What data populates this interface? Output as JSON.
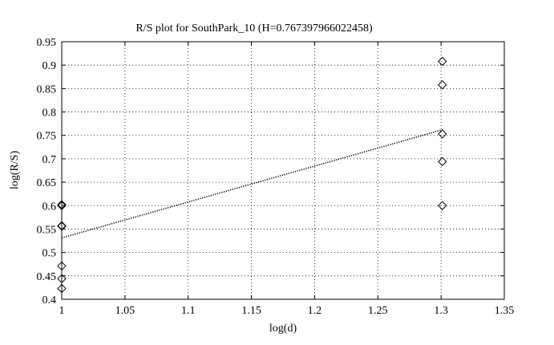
{
  "chart_data": {
    "type": "scatter",
    "title": "R/S plot for SouthPark_10 (H=0.767397966022458)",
    "xlabel": "log(d)",
    "ylabel": "log(R/S)",
    "xlim": [
      1,
      1.35
    ],
    "ylim": [
      0.4,
      0.95
    ],
    "xticks": [
      "1",
      "1.05",
      "1.1",
      "1.15",
      "1.2",
      "1.25",
      "1.3",
      "1.35"
    ],
    "yticks": [
      "0.4",
      "0.45",
      "0.5",
      "0.55",
      "0.6",
      "0.65",
      "0.7",
      "0.75",
      "0.8",
      "0.85",
      "0.9",
      "0.95"
    ],
    "grid": true,
    "marker": "diamond",
    "series": [
      {
        "x": [
          1,
          1,
          1,
          1,
          1,
          1,
          1,
          1.301,
          1.301,
          1.301,
          1.301,
          1.301
        ],
        "y": [
          0.602,
          0.6,
          0.557,
          0.556,
          0.471,
          0.444,
          0.423,
          0.908,
          0.858,
          0.753,
          0.694,
          0.6
        ]
      }
    ],
    "fit_line": {
      "style": "dotted",
      "x": [
        1,
        1.301
      ],
      "y": [
        0.531,
        0.762
      ]
    }
  }
}
